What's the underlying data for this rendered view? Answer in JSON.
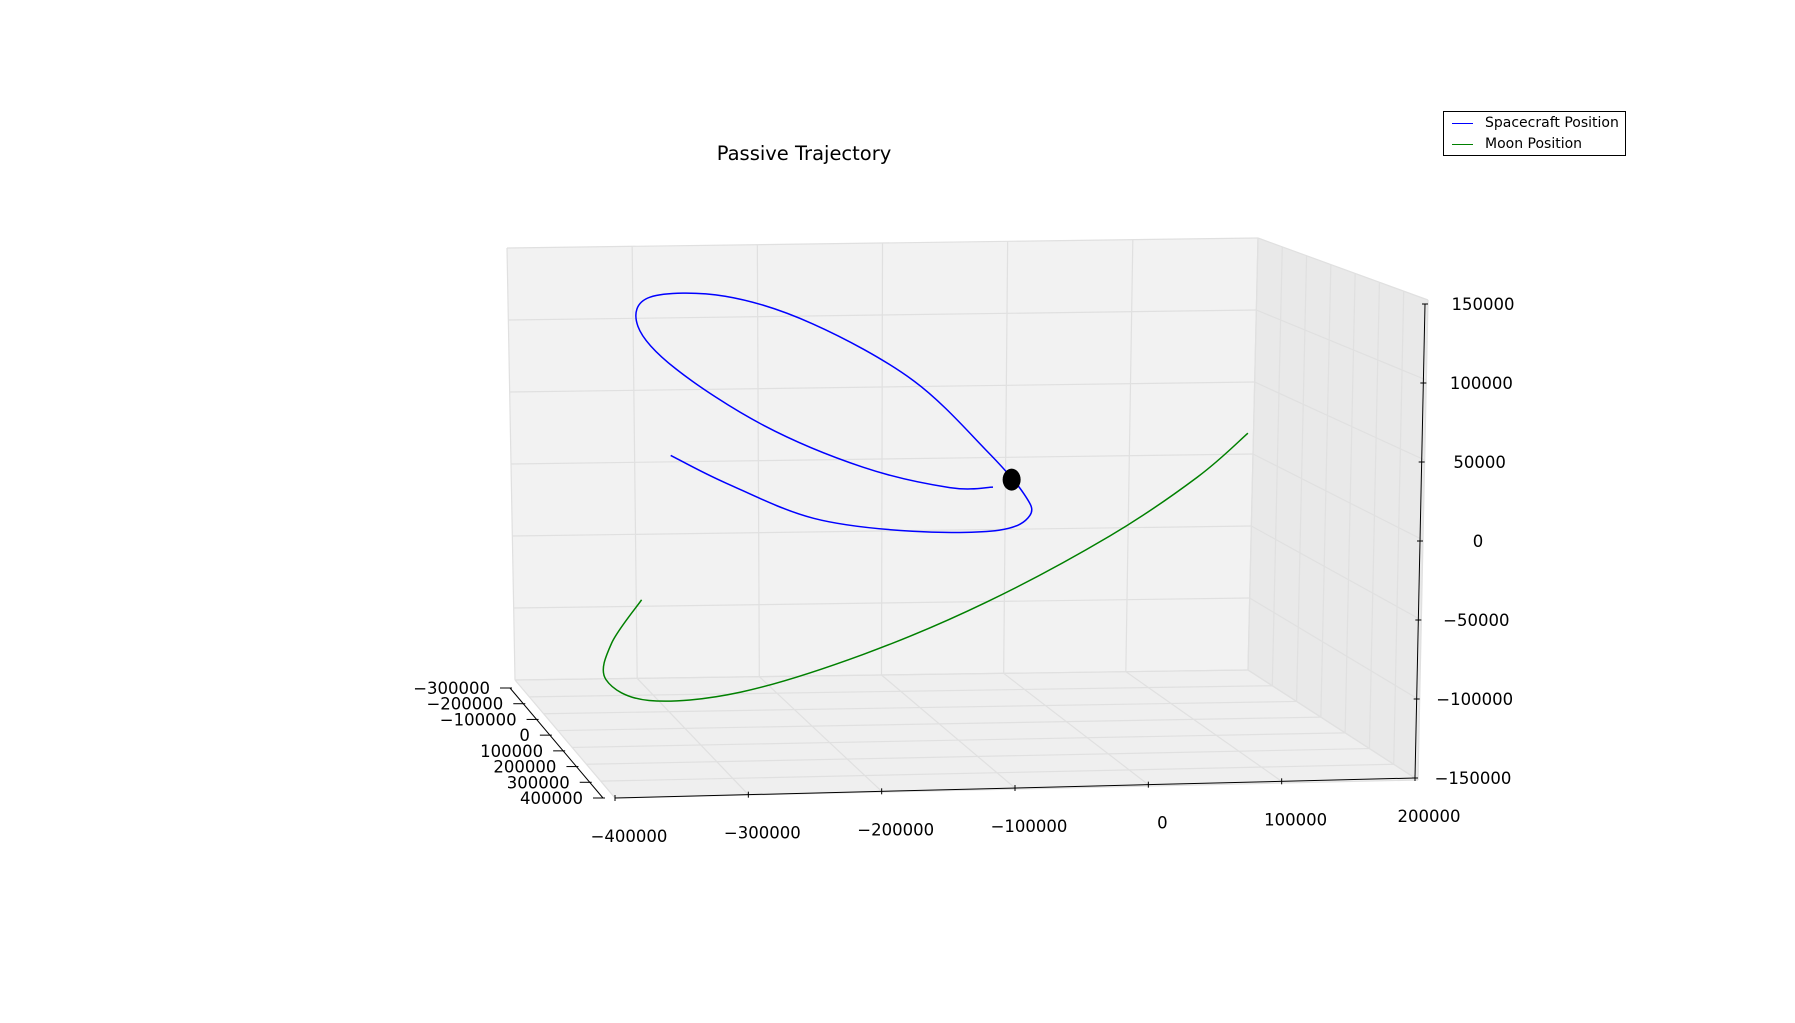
{
  "chart_data": {
    "type": "line",
    "projection": "3d",
    "title": "Passive Trajectory",
    "grid": true,
    "legend_position": "top-right",
    "x_axis": {
      "ticks": [
        -400000,
        -300000,
        -200000,
        -100000,
        0,
        100000,
        200000
      ],
      "tick_labels": [
        "−400000",
        "−300000",
        "−200000",
        "−100000",
        "0",
        "100000",
        "200000"
      ],
      "range": [
        -400000,
        200000
      ]
    },
    "y_axis": {
      "ticks": [
        -300000,
        -200000,
        -100000,
        0,
        100000,
        200000,
        300000,
        400000
      ],
      "tick_labels": [
        "−300000",
        "−200000",
        "−100000",
        "0",
        "100000",
        "200000",
        "300000",
        "400000"
      ],
      "range": [
        -300000,
        400000
      ]
    },
    "z_axis": {
      "ticks": [
        -150000,
        -100000,
        -50000,
        0,
        50000,
        100000,
        150000
      ],
      "tick_labels": [
        "−150000",
        "−100000",
        "−50000",
        "0",
        "50000",
        "100000",
        "150000"
      ],
      "range": [
        -150000,
        150000
      ]
    },
    "series": [
      {
        "name": "Spacecraft Position",
        "color": "#0000ff",
        "points": [
          [
            -305000,
            0,
            40000
          ],
          [
            -260000,
            0,
            20000
          ],
          [
            -190000,
            0,
            -5000
          ],
          [
            -110000,
            0,
            -15000
          ],
          [
            -40000,
            0,
            -15000
          ],
          [
            -15000,
            0,
            -5000
          ],
          [
            -20000,
            0,
            10000
          ],
          [
            -50000,
            0,
            40000
          ],
          [
            -110000,
            0,
            90000
          ],
          [
            -190000,
            0,
            130000
          ],
          [
            -260000,
            0,
            150000
          ],
          [
            -320000,
            0,
            150000
          ],
          [
            -330000,
            0,
            130000
          ],
          [
            -300000,
            0,
            100000
          ],
          [
            -230000,
            0,
            60000
          ],
          [
            -150000,
            0,
            30000
          ],
          [
            -80000,
            0,
            15000
          ],
          [
            -45000,
            0,
            15000
          ]
        ]
      },
      {
        "name": "Moon Position",
        "color": "#008000",
        "points": [
          [
            -330000,
            0,
            -60000
          ],
          [
            -355000,
            0,
            -90000
          ],
          [
            -360000,
            0,
            -115000
          ],
          [
            -325000,
            0,
            -130000
          ],
          [
            -250000,
            0,
            -125000
          ],
          [
            -150000,
            0,
            -100000
          ],
          [
            -50000,
            0,
            -65000
          ],
          [
            50000,
            0,
            -20000
          ],
          [
            120000,
            0,
            20000
          ],
          [
            160000,
            0,
            50000
          ]
        ]
      }
    ],
    "markers": [
      {
        "x": -30000,
        "y": 0,
        "z": 20000,
        "color": "#000000"
      }
    ]
  }
}
